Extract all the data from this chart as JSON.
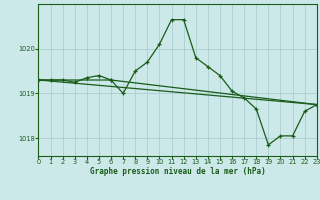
{
  "title": "Graphe pression niveau de la mer (hPa)",
  "xlabel_ticks": [
    0,
    1,
    2,
    3,
    4,
    5,
    6,
    7,
    8,
    9,
    10,
    11,
    12,
    13,
    14,
    15,
    16,
    17,
    18,
    19,
    20,
    21,
    22,
    23
  ],
  "yticks": [
    1018,
    1019,
    1020
  ],
  "ylim": [
    1017.6,
    1021.0
  ],
  "xlim": [
    0,
    23
  ],
  "background_color": "#cce8e8",
  "grid_color": "#aad0d0",
  "line_color": "#1a5c1a",
  "marker_color": "#1a5c1a",
  "series1_x": [
    0,
    1,
    2,
    3,
    4,
    5,
    6,
    7,
    8,
    9,
    10,
    11,
    12,
    13,
    14,
    15,
    16,
    17,
    18,
    19,
    20,
    21,
    22,
    23
  ],
  "series1_y": [
    1019.3,
    1019.3,
    1019.3,
    1019.25,
    1019.35,
    1019.4,
    1019.3,
    1019.0,
    1019.5,
    1019.7,
    1020.1,
    1020.65,
    1020.65,
    1019.8,
    1019.6,
    1019.4,
    1019.05,
    1018.9,
    1018.65,
    1017.85,
    1018.05,
    1018.05,
    1018.6,
    1018.75
  ],
  "series2_x": [
    0,
    6,
    23
  ],
  "series2_y": [
    1019.3,
    1019.3,
    1018.75
  ],
  "series3_x": [
    0,
    23
  ],
  "series3_y": [
    1019.3,
    1018.75
  ],
  "label_fontsize": 5.5,
  "tick_fontsize": 4.8
}
